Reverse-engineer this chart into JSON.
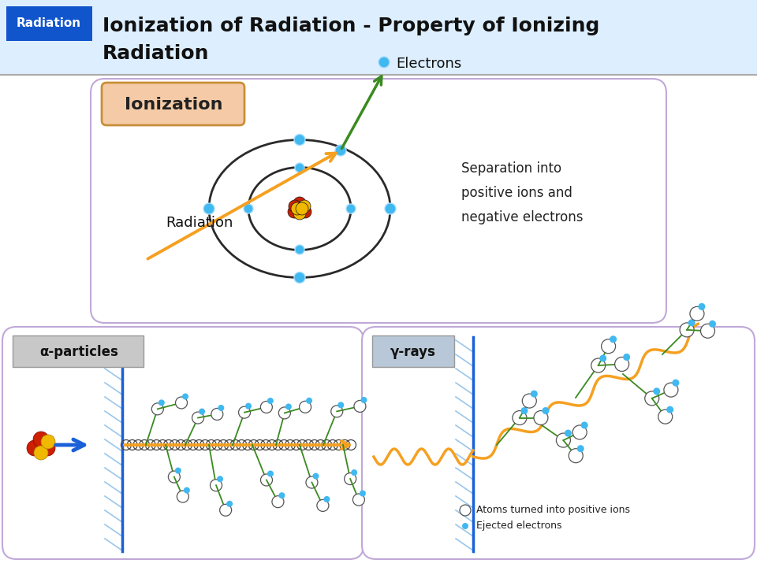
{
  "title_line1": "Ionization of Radiation - Property of Ionizing",
  "title_line2": "Radiation",
  "header_bg": "#ddeeff",
  "header_label": "Radiation",
  "header_label_bg": "#1155cc",
  "header_label_color": "#ffffff",
  "top_box_bg": "#ffffff",
  "top_box_border": "#c0a8d8",
  "ionization_label": "Ionization",
  "ionization_label_bg": "#f5cba7",
  "ionization_label_border": "#c8903a",
  "electrons_text": "Electrons",
  "radiation_text": "Radiation",
  "separation_text": "Separation into\npositive ions and\nnegative electrons",
  "bottom_left_bg": "#ffffff",
  "bottom_left_border": "#c0a8d8",
  "alpha_label": "α-particles",
  "alpha_label_bg": "#c8c8c8",
  "bottom_right_bg": "#ffffff",
  "bottom_right_border": "#c0a8d8",
  "gamma_label": "γ-rays",
  "gamma_label_bg": "#b8c8d8",
  "atom_ions_text": "Atoms turned into positive ions",
  "ejected_text": "Ejected electrons",
  "orange_color": "#f5a020",
  "green_color": "#3a8a20",
  "blue_color": "#1a60d8",
  "cyan_color": "#40b8f0",
  "nucleus_red": "#cc2000",
  "nucleus_yellow": "#f0b800"
}
